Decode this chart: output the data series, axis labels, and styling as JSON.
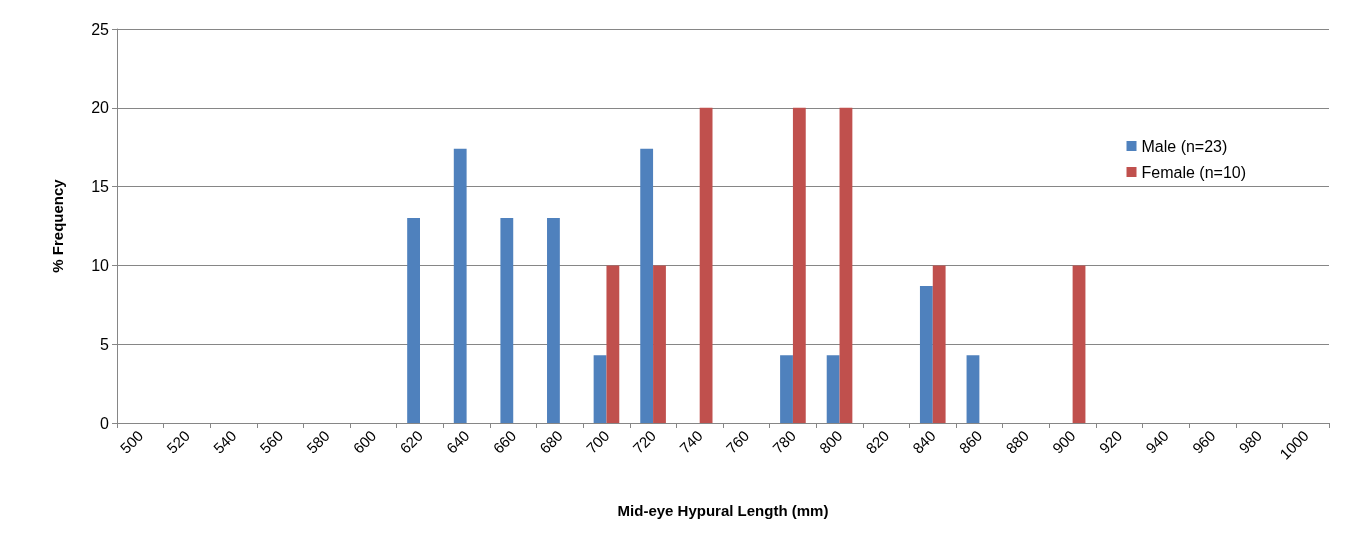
{
  "chart_data": {
    "type": "bar",
    "xlabel": "Mid-eye Hypural Length (mm)",
    "ylabel": "% Frequency",
    "categories": [
      "500",
      "520",
      "540",
      "560",
      "580",
      "600",
      "620",
      "640",
      "660",
      "680",
      "700",
      "720",
      "740",
      "760",
      "780",
      "800",
      "820",
      "840",
      "860",
      "880",
      "900",
      "920",
      "940",
      "960",
      "980",
      "1000"
    ],
    "series": [
      {
        "name": "Male (n=23)",
        "color": "#4f81bd",
        "values": [
          0,
          0,
          0,
          0,
          0,
          0,
          13,
          17.4,
          13,
          13,
          4.3,
          17.4,
          0,
          0,
          4.3,
          4.3,
          0,
          8.7,
          4.3,
          0,
          0,
          0,
          0,
          0,
          0,
          0
        ]
      },
      {
        "name": "Female (n=10)",
        "color": "#c0504d",
        "values": [
          0,
          0,
          0,
          0,
          0,
          0,
          0,
          0,
          0,
          0,
          10,
          10,
          20,
          0,
          20,
          20,
          0,
          10,
          0,
          0,
          10,
          0,
          0,
          0,
          0,
          0
        ]
      }
    ],
    "ylim": [
      0,
      25
    ],
    "yticks": [
      0,
      5,
      10,
      15,
      20,
      25
    ],
    "grid": "y",
    "legend": "right"
  }
}
